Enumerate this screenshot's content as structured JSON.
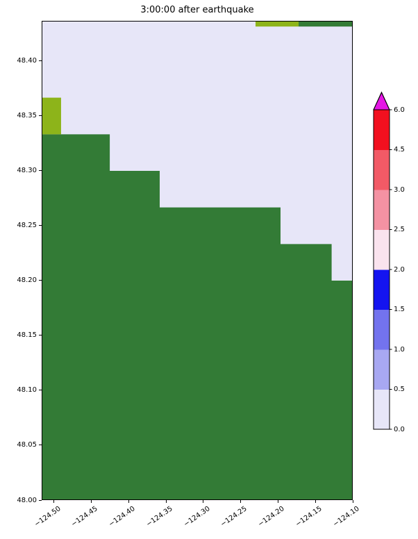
{
  "chart_data": {
    "type": "heatmap",
    "title": "3:00:00 after earthquake",
    "xlabel": "",
    "ylabel": "",
    "xlim": [
      -124.5167,
      -124.1
    ],
    "ylim": [
      48.0,
      48.4367
    ],
    "grid": false,
    "x_ticks": [
      "−124.50",
      "−124.45",
      "−124.40",
      "−124.35",
      "−124.30",
      "−124.25",
      "−124.20",
      "−124.15",
      "−124.10"
    ],
    "x_tick_values": [
      -124.5,
      -124.45,
      -124.4,
      -124.35,
      -124.3,
      -124.25,
      -124.2,
      -124.15,
      -124.1
    ],
    "y_ticks": [
      "48.40",
      "48.35",
      "48.30",
      "48.25",
      "48.20",
      "48.15",
      "48.10",
      "48.05",
      "48.00"
    ],
    "y_tick_values": [
      48.4,
      48.35,
      48.3,
      48.25,
      48.2,
      48.15,
      48.1,
      48.05,
      48.0
    ],
    "water_color": "#e7e6f8",
    "land_color": "#337b36",
    "shallow_land_color": "#8db41a",
    "regions": {
      "land_polygon": [
        [
          -124.5167,
          48.3333
        ],
        [
          -124.4255,
          48.3333
        ],
        [
          -124.4255,
          48.3
        ],
        [
          -124.3586,
          48.3
        ],
        [
          -124.3586,
          48.2667
        ],
        [
          -124.1967,
          48.2667
        ],
        [
          -124.1967,
          48.2333
        ],
        [
          -124.1283,
          48.2333
        ],
        [
          -124.1283,
          48.2
        ],
        [
          -124.1,
          48.2
        ],
        [
          -124.1,
          48.0
        ],
        [
          -124.5167,
          48.0
        ]
      ],
      "olive_patch": {
        "lon": [
          -124.5167,
          -124.4907
        ],
        "lat": [
          48.3333,
          48.3667
        ]
      },
      "top_strip_olive": {
        "lon": [
          -124.2302,
          -124.1725
        ],
        "lat": [
          48.4315,
          48.4367
        ]
      },
      "top_strip_green": {
        "lon": [
          -124.1725,
          -124.1
        ],
        "lat": [
          48.4315,
          48.4367
        ]
      }
    },
    "colorbar": {
      "boundaries": [
        0.0,
        0.5,
        1.0,
        1.5,
        2.0,
        2.5,
        3.0,
        4.5,
        6.0
      ],
      "tick_labels": [
        "0.0",
        "0.5",
        "1.0",
        "1.5",
        "2.0",
        "2.5",
        "3.0",
        "4.5",
        "6.0"
      ],
      "segment_colors": [
        "#e7e6f8",
        "#a8a8f2",
        "#7373ee",
        "#1414f0",
        "#fae3ee",
        "#f492a3",
        "#f25a66",
        "#f2101f"
      ],
      "extend": "max",
      "extend_color": "#e517e5",
      "legend_position": "right"
    }
  }
}
